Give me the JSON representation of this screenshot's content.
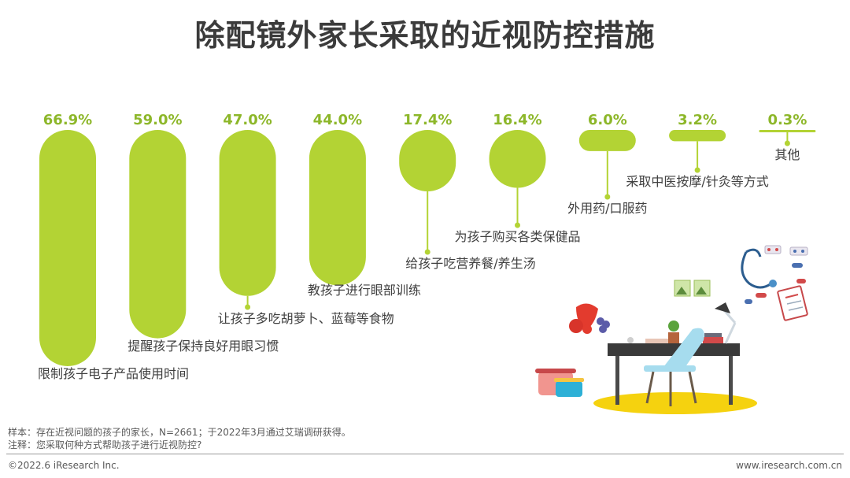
{
  "page": {
    "title": "除配镜外家长采取的近视防控措施",
    "sample_note": "样本：存在近视问题的孩子的家长，N=2661；于2022年3月通过艾瑞调研获得。",
    "question_note": "注释：您采取何种方式帮助孩子进行近视防控?",
    "copyright": "©2022.6 iResearch Inc.",
    "website": "www.iresearch.com.cn"
  },
  "colors": {
    "bar": "#b3d334",
    "value_label": "#8db72a",
    "title": "#3b3b3b",
    "text": "#404040"
  },
  "chart_data": {
    "type": "bar",
    "title": "除配镜外家长采取的近视防控措施",
    "unit": "%",
    "categories": [
      "限制孩子电子产品使用时间",
      "提醒孩子保持良好用眼习惯",
      "让孩子多吃胡萝卜、蓝莓等食物",
      "教孩子进行眼部训练",
      "给孩子吃营养餐/养生汤",
      "为孩子购买各类保健品",
      "外用药/口服药",
      "采取中医按摩/针灸等方式",
      "其他"
    ],
    "values": [
      66.9,
      59.0,
      47.0,
      44.0,
      17.4,
      16.4,
      6.0,
      3.2,
      0.3
    ],
    "value_labels": [
      "66.9%",
      "59.0%",
      "47.0%",
      "44.0%",
      "17.4%",
      "16.4%",
      "6.0%",
      "3.2%",
      "0.3%"
    ],
    "ylim": [
      0,
      66.9
    ],
    "grid": false,
    "legend": "none"
  },
  "illustration": {
    "description_icons": [
      "fruit-icon",
      "pot-icon",
      "desk-icon",
      "chair-icon",
      "lamp-icon",
      "stethoscope-icon",
      "pill-icon",
      "medical-chart-icon"
    ]
  }
}
